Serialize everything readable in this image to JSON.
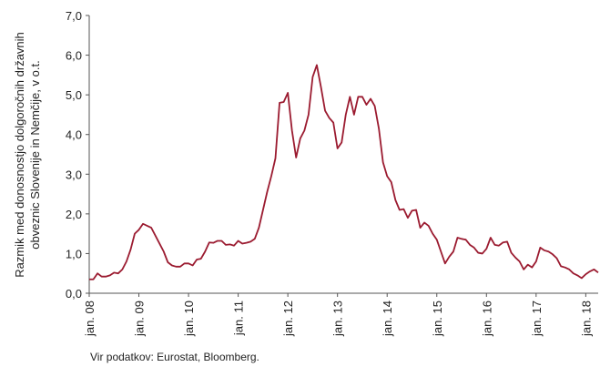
{
  "chart_data": {
    "type": "line",
    "y_label_lines": [
      "Razmik med donosnostjo dolgoročnih državnih",
      "obveznic Slovenije in Nemčije, v o.t."
    ],
    "source": "Vir podatkov: Eurostat, Bloomberg.",
    "categories": [
      "jan. 08",
      null,
      null,
      null,
      null,
      null,
      null,
      null,
      null,
      null,
      null,
      null,
      "jan. 09",
      null,
      null,
      null,
      null,
      null,
      null,
      null,
      null,
      null,
      null,
      null,
      "jan. 10",
      null,
      null,
      null,
      null,
      null,
      null,
      null,
      null,
      null,
      null,
      null,
      "jan. 11",
      null,
      null,
      null,
      null,
      null,
      null,
      null,
      null,
      null,
      null,
      null,
      "jan. 12",
      null,
      null,
      null,
      null,
      null,
      null,
      null,
      null,
      null,
      null,
      null,
      "jan. 13",
      null,
      null,
      null,
      null,
      null,
      null,
      null,
      null,
      null,
      null,
      null,
      "jan. 14",
      null,
      null,
      null,
      null,
      null,
      null,
      null,
      null,
      null,
      null,
      null,
      "jan. 15",
      null,
      null,
      null,
      null,
      null,
      null,
      null,
      null,
      null,
      null,
      null,
      "jan. 16",
      null,
      null,
      null,
      null,
      null,
      null,
      null,
      null,
      null,
      null,
      null,
      "jan. 17",
      null,
      null,
      null,
      null,
      null,
      null,
      null,
      null,
      null,
      null,
      null,
      "jan. 18",
      null,
      null,
      null
    ],
    "series": [
      {
        "color": "#9b1b30",
        "values": [
          0.35,
          0.35,
          0.5,
          0.42,
          0.42,
          0.45,
          0.52,
          0.5,
          0.6,
          0.8,
          1.1,
          1.5,
          1.6,
          1.75,
          1.7,
          1.65,
          1.45,
          1.25,
          1.05,
          0.78,
          0.7,
          0.67,
          0.67,
          0.75,
          0.75,
          0.7,
          0.85,
          0.87,
          1.05,
          1.28,
          1.27,
          1.32,
          1.32,
          1.22,
          1.23,
          1.2,
          1.32,
          1.25,
          1.27,
          1.3,
          1.37,
          1.65,
          2.1,
          2.55,
          2.95,
          3.4,
          4.8,
          4.82,
          5.05,
          4.1,
          3.42,
          3.9,
          4.1,
          4.5,
          5.45,
          5.75,
          5.2,
          4.6,
          4.42,
          4.3,
          3.65,
          3.8,
          4.5,
          4.95,
          4.5,
          4.95,
          4.95,
          4.75,
          4.9,
          4.72,
          4.15,
          3.3,
          2.95,
          2.8,
          2.35,
          2.1,
          2.12,
          1.9,
          2.08,
          2.1,
          1.65,
          1.78,
          1.7,
          1.5,
          1.35,
          1.05,
          0.75,
          0.92,
          1.05,
          1.4,
          1.37,
          1.35,
          1.22,
          1.15,
          1.02,
          1.0,
          1.12,
          1.4,
          1.22,
          1.2,
          1.28,
          1.3,
          1.02,
          0.9,
          0.8,
          0.6,
          0.72,
          0.65,
          0.8,
          1.15,
          1.08,
          1.05,
          0.98,
          0.88,
          0.68,
          0.65,
          0.6,
          0.5,
          0.45,
          0.38,
          0.48,
          0.55,
          0.6,
          0.52
        ]
      }
    ],
    "ylim": [
      0,
      7
    ],
    "yticks": [
      {
        "value": 0,
        "label": "0,0"
      },
      {
        "value": 1,
        "label": "1,0"
      },
      {
        "value": 2,
        "label": "2,0"
      },
      {
        "value": 3,
        "label": "3,0"
      },
      {
        "value": 4,
        "label": "4,0"
      },
      {
        "value": 5,
        "label": "5,0"
      },
      {
        "value": 6,
        "label": "6,0"
      },
      {
        "value": 7,
        "label": "7,0"
      }
    ],
    "grid": false
  }
}
